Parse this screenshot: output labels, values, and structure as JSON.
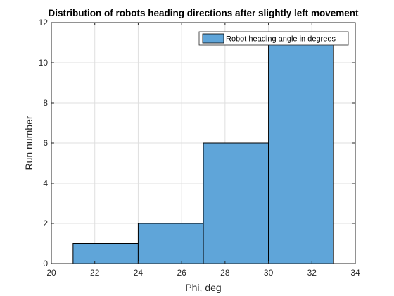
{
  "chart_data": {
    "type": "bar",
    "subtype": "histogram",
    "title": "Distribution of robots heading directions after slightly left movement",
    "xlabel": "Phi, deg",
    "ylabel": "Run number",
    "xlim": [
      20,
      34
    ],
    "ylim": [
      0,
      12
    ],
    "xticks": [
      20,
      22,
      24,
      26,
      28,
      30,
      32,
      34
    ],
    "yticks": [
      0,
      2,
      4,
      6,
      8,
      10,
      12
    ],
    "grid": true,
    "legend_position": "top-right",
    "bar_color": "#5fa5d9",
    "series": [
      {
        "name": "Robot heading angle in degrees",
        "bins": [
          {
            "x_start": 21,
            "x_end": 24,
            "count": 1
          },
          {
            "x_start": 24,
            "x_end": 27,
            "count": 2
          },
          {
            "x_start": 27,
            "x_end": 30,
            "count": 6
          },
          {
            "x_start": 30,
            "x_end": 33,
            "count": 11
          }
        ]
      }
    ]
  }
}
